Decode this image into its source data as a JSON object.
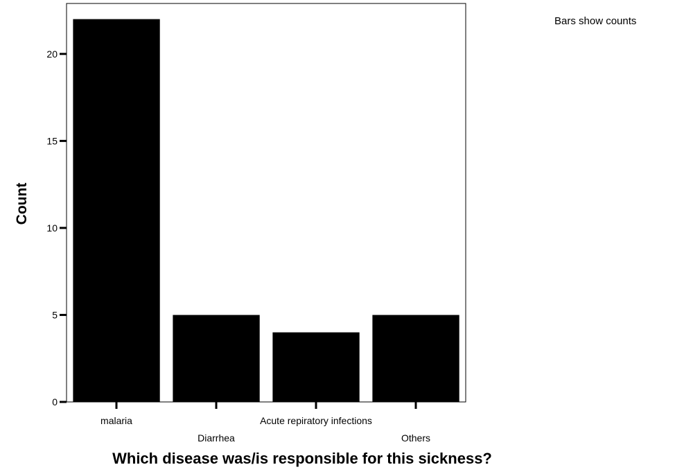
{
  "chart_data": {
    "type": "bar",
    "categories": [
      "malaria",
      "Diarrhea",
      "Acute repiratory infections",
      "Others"
    ],
    "values": [
      22,
      5,
      4,
      5
    ],
    "xlabel": "Which disease was/is responsible for this sickness?",
    "ylabel": "Count",
    "ylim": [
      0,
      22.9
    ],
    "yticks": [
      0,
      5,
      10,
      15,
      20
    ],
    "note": "Bars show counts",
    "bar_color": "#000000",
    "grid": false
  }
}
